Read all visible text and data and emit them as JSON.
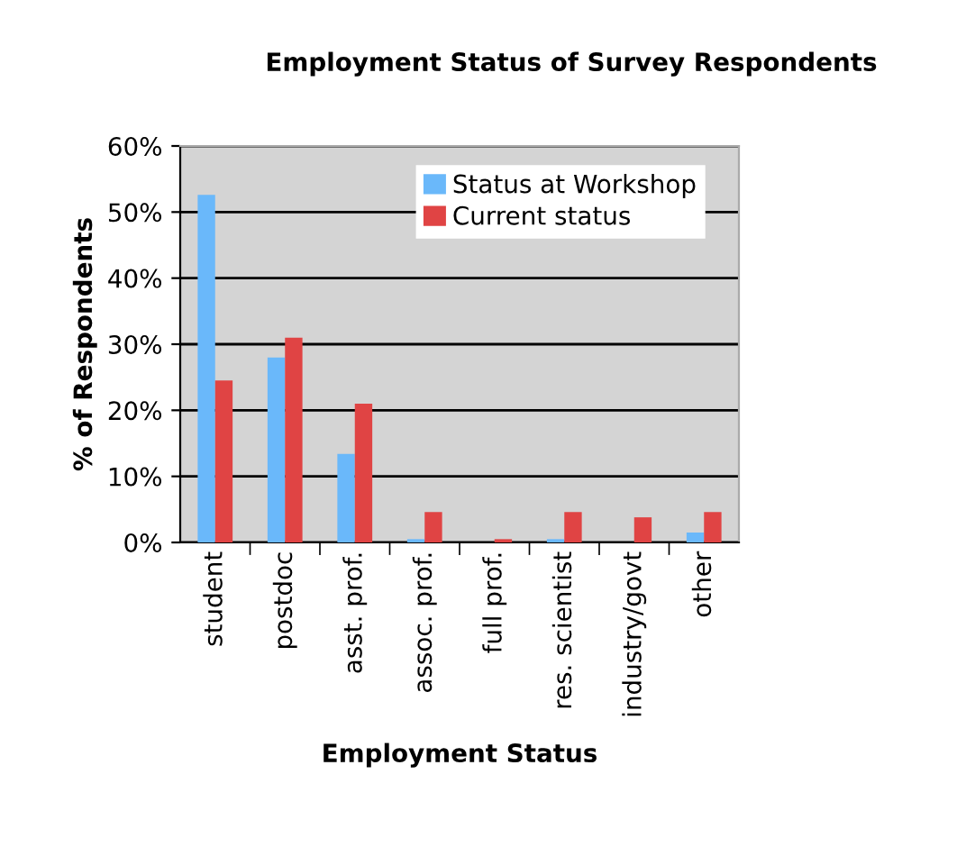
{
  "chart_data": {
    "type": "bar",
    "title": "Employment Status of Survey Respondents",
    "xlabel": "Employment Status",
    "ylabel": "% of Respondents",
    "categories": [
      "student",
      "postdoc",
      "asst. prof.",
      "assoc. prof.",
      "full prof.",
      "res. scientist",
      "industry/govt",
      "other"
    ],
    "series": [
      {
        "name": "Status at Workshop",
        "color": "#6ab8fa",
        "values": [
          52.6,
          28,
          13.4,
          0.5,
          0,
          0.5,
          0,
          1.5
        ]
      },
      {
        "name": "Current status",
        "color": "#e04444",
        "values": [
          24.5,
          31,
          21,
          4.6,
          0.5,
          4.6,
          3.8,
          4.6
        ]
      }
    ],
    "ylim": [
      0,
      60
    ],
    "yticks": [
      {
        "value": 0,
        "label": "0%"
      },
      {
        "value": 10,
        "label": "10%"
      },
      {
        "value": 20,
        "label": "20%"
      },
      {
        "value": 30,
        "label": "30%"
      },
      {
        "value": 40,
        "label": "40%"
      },
      {
        "value": 50,
        "label": "50%"
      },
      {
        "value": 60,
        "label": "60%"
      }
    ],
    "grid": "y",
    "legend": "top right"
  }
}
